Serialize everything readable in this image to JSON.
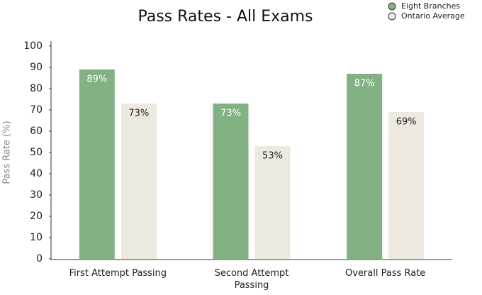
{
  "chart_data": {
    "type": "bar",
    "title": "Pass Rates - All Exams",
    "y_label": "Pass Rate (%)",
    "categories": [
      "First Attempt Passing",
      "Second Attempt Passing",
      "Overall Pass Rate"
    ],
    "series": [
      {
        "name": "Eight Branches",
        "color": "#82b183",
        "values": [
          89,
          73,
          87
        ],
        "value_labels": [
          "89%",
          "73%",
          "87%"
        ]
      },
      {
        "name": "Ontario Average",
        "color": "#ede9df",
        "values": [
          73,
          53,
          69
        ],
        "value_labels": [
          "73%",
          "53%",
          "69%"
        ]
      }
    ],
    "ylim": [
      0,
      100
    ],
    "yticks": [
      0,
      10,
      20,
      30,
      40,
      50,
      60,
      70,
      80,
      90,
      100
    ],
    "grid": false,
    "legend": "top-right"
  }
}
